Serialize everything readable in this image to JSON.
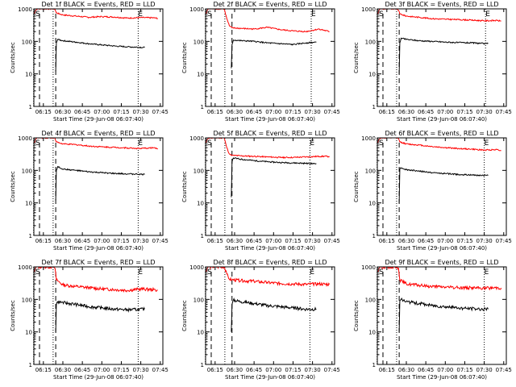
{
  "chart_data": [
    {
      "type": "line",
      "title": "Det 1f BLACK = Events, RED = LLD",
      "xlabel": "Start Time (29-Jun-08 06:07:40)",
      "ylabel": "Counts/sec",
      "x_ticks": [
        "06:15",
        "06:30",
        "06:45",
        "07:00",
        "07:15",
        "07:30",
        "07:45"
      ],
      "y_ticks": [
        "1",
        "10",
        "100",
        "1000"
      ],
      "yscale": "log",
      "ylim": [
        1,
        1000
      ],
      "xlim": [
        "06:07:40",
        "07:47:00"
      ],
      "markers": [
        {
          "label": "S",
          "x": "06:09:00"
        },
        {
          "label": "E",
          "x": "07:28:00"
        }
      ],
      "dashed_lines": [
        "06:12:00",
        "06:24:30"
      ],
      "dotted_lines": [
        "06:07:30",
        "06:22:30",
        "07:28:00"
      ],
      "series": [
        {
          "name": "RED",
          "color": "#ff0000",
          "x": [
            "06:08",
            "06:09",
            "06:10",
            "06:11",
            "06:22",
            "06:23",
            "06:24",
            "06:25",
            "06:30",
            "06:40",
            "06:50",
            "07:00",
            "07:10",
            "07:20",
            "07:30",
            "07:40",
            "07:43"
          ],
          "values": [
            700,
            900,
            1000,
            1000,
            1000,
            1000,
            950,
            750,
            650,
            600,
            550,
            580,
            560,
            520,
            540,
            530,
            510
          ]
        },
        {
          "name": "BLACK",
          "color": "#000000",
          "x": [
            "06:24.5",
            "06:25",
            "06:26",
            "06:30",
            "06:40",
            "06:50",
            "07:00",
            "07:10",
            "07:20",
            "07:33"
          ],
          "values": [
            12,
            90,
            115,
            105,
            95,
            85,
            78,
            72,
            68,
            65
          ]
        }
      ]
    },
    {
      "type": "line",
      "title": "Det 2f BLACK = Events, RED = LLD",
      "xlabel": "Start Time (29-Jun-08 06:07:40)",
      "ylabel": "Counts/sec",
      "x_ticks": [
        "06:15",
        "06:30",
        "06:45",
        "07:00",
        "07:15",
        "07:30",
        "07:45"
      ],
      "y_ticks": [
        "1",
        "10",
        "100",
        "1000"
      ],
      "yscale": "log",
      "ylim": [
        1,
        1000
      ],
      "xlim": [
        "06:07:40",
        "07:47:00"
      ],
      "markers": [
        {
          "label": "S",
          "x": "06:09:00"
        },
        {
          "label": "E",
          "x": "07:29:00"
        }
      ],
      "dashed_lines": [
        "06:12:00",
        "06:28:00"
      ],
      "dotted_lines": [
        "06:07:30",
        "06:22:30",
        "07:29:00"
      ],
      "series": [
        {
          "name": "RED",
          "color": "#ff0000",
          "x": [
            "06:08",
            "06:09",
            "06:10",
            "06:11",
            "06:22",
            "06:24",
            "06:26",
            "06:28",
            "06:35",
            "06:45",
            "06:55",
            "07:05",
            "07:15",
            "07:25",
            "07:35",
            "07:43"
          ],
          "values": [
            700,
            900,
            1000,
            1000,
            1000,
            500,
            300,
            260,
            250,
            240,
            270,
            230,
            210,
            200,
            240,
            200
          ]
        },
        {
          "name": "BLACK",
          "color": "#000000",
          "x": [
            "06:27.5",
            "06:28",
            "06:29",
            "06:35",
            "06:45",
            "06:55",
            "07:05",
            "07:15",
            "07:25",
            "07:33"
          ],
          "values": [
            15,
            80,
            110,
            105,
            100,
            90,
            85,
            80,
            90,
            95
          ]
        }
      ]
    },
    {
      "type": "line",
      "title": "Det 3f BLACK = Events, RED = LLD",
      "xlabel": "Start Time (29-Jun-08 06:07:40)",
      "ylabel": "Counts/sec",
      "x_ticks": [
        "06:15",
        "06:30",
        "06:45",
        "07:00",
        "07:15",
        "07:30",
        "07:45"
      ],
      "y_ticks": [
        "1",
        "10",
        "100",
        "1000"
      ],
      "yscale": "log",
      "ylim": [
        1,
        1000
      ],
      "xlim": [
        "06:07:40",
        "07:47:00"
      ],
      "markers": [
        {
          "label": "S",
          "x": "06:09:00"
        },
        {
          "label": "E",
          "x": "07:31:00"
        }
      ],
      "dashed_lines": [
        "06:12:00",
        "06:24:30"
      ],
      "dotted_lines": [
        "06:07:30",
        "06:22:30",
        "07:31:00"
      ],
      "series": [
        {
          "name": "RED",
          "color": "#ff0000",
          "x": [
            "06:08",
            "06:09",
            "06:10",
            "06:11",
            "06:22",
            "06:23",
            "06:24",
            "06:25",
            "06:30",
            "06:40",
            "06:50",
            "07:00",
            "07:10",
            "07:20",
            "07:30",
            "07:40",
            "07:43"
          ],
          "values": [
            700,
            900,
            1000,
            1000,
            1000,
            1000,
            900,
            700,
            600,
            550,
            500,
            480,
            470,
            450,
            430,
            440,
            420
          ]
        },
        {
          "name": "BLACK",
          "color": "#000000",
          "x": [
            "06:24.5",
            "06:25",
            "06:26",
            "06:30",
            "06:40",
            "06:50",
            "07:00",
            "07:10",
            "07:20",
            "07:33"
          ],
          "values": [
            10,
            90,
            125,
            115,
            105,
            100,
            95,
            92,
            90,
            85
          ]
        }
      ]
    },
    {
      "type": "line",
      "title": "Det 4f BLACK = Events, RED = LLD",
      "xlabel": "Start Time (29-Jun-08 06:07:40)",
      "ylabel": "Counts/sec",
      "x_ticks": [
        "06:15",
        "06:30",
        "06:45",
        "07:00",
        "07:15",
        "07:30",
        "07:45"
      ],
      "y_ticks": [
        "1",
        "10",
        "100",
        "1000"
      ],
      "yscale": "log",
      "ylim": [
        1,
        1000
      ],
      "xlim": [
        "06:07:40",
        "07:47:00"
      ],
      "markers": [
        {
          "label": "S",
          "x": "06:09:00"
        },
        {
          "label": "E",
          "x": "07:28:00"
        }
      ],
      "dashed_lines": [
        "06:12:00",
        "06:24:30"
      ],
      "dotted_lines": [
        "06:07:30",
        "06:22:30",
        "07:28:00"
      ],
      "series": [
        {
          "name": "RED",
          "color": "#ff0000",
          "x": [
            "06:08",
            "06:09",
            "06:10",
            "06:11",
            "06:22",
            "06:23",
            "06:24",
            "06:25",
            "06:30",
            "06:40",
            "06:50",
            "07:00",
            "07:10",
            "07:20",
            "07:30",
            "07:40",
            "07:43"
          ],
          "values": [
            700,
            900,
            1000,
            1000,
            1000,
            1000,
            950,
            750,
            650,
            620,
            560,
            530,
            510,
            490,
            470,
            500,
            450
          ]
        },
        {
          "name": "BLACK",
          "color": "#000000",
          "x": [
            "06:24.5",
            "06:25",
            "06:26",
            "06:30",
            "06:40",
            "06:50",
            "07:00",
            "07:10",
            "07:20",
            "07:33"
          ],
          "values": [
            12,
            100,
            130,
            110,
            100,
            90,
            85,
            80,
            78,
            75
          ]
        }
      ]
    },
    {
      "type": "line",
      "title": "Det 5f BLACK = Events, RED = LLD",
      "xlabel": "Start Time (29-Jun-08 06:07:40)",
      "ylabel": "Counts/sec",
      "x_ticks": [
        "06:15",
        "06:30",
        "06:45",
        "07:00",
        "07:15",
        "07:30",
        "07:45"
      ],
      "y_ticks": [
        "1",
        "10",
        "100",
        "1000"
      ],
      "yscale": "log",
      "ylim": [
        1,
        1000
      ],
      "xlim": [
        "06:07:40",
        "07:47:00"
      ],
      "markers": [
        {
          "label": "S",
          "x": "06:09:00"
        },
        {
          "label": "E",
          "x": "07:28:00"
        }
      ],
      "dashed_lines": [
        "06:12:00",
        "06:28:00"
      ],
      "dotted_lines": [
        "06:07:30",
        "06:22:30",
        "07:28:00"
      ],
      "series": [
        {
          "name": "RED",
          "color": "#ff0000",
          "x": [
            "06:08",
            "06:09",
            "06:10",
            "06:11",
            "06:22",
            "06:24",
            "06:26",
            "06:28",
            "06:35",
            "06:45",
            "06:55",
            "07:05",
            "07:15",
            "07:25",
            "07:35",
            "07:43"
          ],
          "values": [
            700,
            900,
            1000,
            1000,
            1000,
            500,
            320,
            290,
            280,
            270,
            260,
            250,
            250,
            260,
            270,
            270
          ]
        },
        {
          "name": "BLACK",
          "color": "#000000",
          "x": [
            "06:27.5",
            "06:28",
            "06:29",
            "06:35",
            "06:45",
            "06:55",
            "07:05",
            "07:15",
            "07:25",
            "07:33"
          ],
          "values": [
            15,
            180,
            240,
            220,
            200,
            185,
            175,
            170,
            165,
            160
          ]
        }
      ]
    },
    {
      "type": "line",
      "title": "Det 6f BLACK = Events, RED = LLD",
      "xlabel": "Start Time (29-Jun-08 06:07:40)",
      "ylabel": "Counts/sec",
      "x_ticks": [
        "06:15",
        "06:30",
        "06:45",
        "07:00",
        "07:15",
        "07:30",
        "07:45"
      ],
      "y_ticks": [
        "1",
        "10",
        "100",
        "1000"
      ],
      "yscale": "log",
      "ylim": [
        1,
        1000
      ],
      "xlim": [
        "06:07:40",
        "07:47:00"
      ],
      "markers": [
        {
          "label": "S",
          "x": "06:09:00"
        },
        {
          "label": "E",
          "x": "07:30:00"
        }
      ],
      "dashed_lines": [
        "06:12:00",
        "06:24:30"
      ],
      "dotted_lines": [
        "06:07:30",
        "06:22:30",
        "07:30:00"
      ],
      "series": [
        {
          "name": "RED",
          "color": "#ff0000",
          "x": [
            "06:08",
            "06:09",
            "06:10",
            "06:11",
            "06:22",
            "06:23",
            "06:24",
            "06:25",
            "06:30",
            "06:40",
            "06:50",
            "07:00",
            "07:10",
            "07:20",
            "07:30",
            "07:40",
            "07:43"
          ],
          "values": [
            700,
            900,
            1000,
            1000,
            1000,
            1000,
            950,
            750,
            650,
            600,
            540,
            500,
            470,
            450,
            420,
            440,
            410
          ]
        },
        {
          "name": "BLACK",
          "color": "#000000",
          "x": [
            "06:24.5",
            "06:25",
            "06:26",
            "06:30",
            "06:40",
            "06:50",
            "07:00",
            "07:10",
            "07:20",
            "07:33"
          ],
          "values": [
            10,
            110,
            120,
            105,
            95,
            85,
            80,
            75,
            72,
            70
          ]
        }
      ]
    },
    {
      "type": "line",
      "title": "Det 7f BLACK = Events, RED = LLD",
      "xlabel": "Start Time (29-Jun-08 06:07:40)",
      "ylabel": "Counts/sec",
      "x_ticks": [
        "06:15",
        "06:30",
        "06:45",
        "07:00",
        "07:15",
        "07:30",
        "07:45"
      ],
      "y_ticks": [
        "1",
        "10",
        "100",
        "1000"
      ],
      "yscale": "log",
      "ylim": [
        1,
        1000
      ],
      "xlim": [
        "06:07:40",
        "07:47:00"
      ],
      "markers": [
        {
          "label": "S",
          "x": "06:09:00"
        },
        {
          "label": "E",
          "x": "07:28:00"
        }
      ],
      "dashed_lines": [
        "06:12:00",
        "06:24:30"
      ],
      "dotted_lines": [
        "06:07:30",
        "06:22:30",
        "07:28:00"
      ],
      "series": [
        {
          "name": "RED",
          "color": "#ff0000",
          "x": [
            "06:08",
            "06:09",
            "06:10",
            "06:11",
            "06:22",
            "06:23",
            "06:24",
            "06:25",
            "06:30",
            "06:40",
            "06:50",
            "07:00",
            "07:10",
            "07:20",
            "07:30",
            "07:40",
            "07:43"
          ],
          "values": [
            700,
            900,
            1000,
            1000,
            1000,
            1000,
            900,
            400,
            280,
            250,
            230,
            210,
            200,
            190,
            210,
            200,
            190
          ]
        },
        {
          "name": "BLACK",
          "color": "#000000",
          "x": [
            "06:24.5",
            "06:25",
            "06:26",
            "06:30",
            "06:40",
            "06:50",
            "07:00",
            "07:10",
            "07:20",
            "07:33"
          ],
          "values": [
            10,
            70,
            85,
            80,
            70,
            60,
            55,
            50,
            48,
            50
          ]
        }
      ]
    },
    {
      "type": "line",
      "title": "Det 8f BLACK = Events, RED = LLD",
      "xlabel": "Start Time (29-Jun-08 06:07:40)",
      "ylabel": "Counts/sec",
      "x_ticks": [
        "06:15",
        "06:30",
        "06:45",
        "07:00",
        "07:15",
        "07:30",
        "07:45"
      ],
      "y_ticks": [
        "1",
        "10",
        "100",
        "1000"
      ],
      "yscale": "log",
      "ylim": [
        1,
        1000
      ],
      "xlim": [
        "06:07:40",
        "07:47:00"
      ],
      "markers": [
        {
          "label": "S",
          "x": "06:09:00"
        },
        {
          "label": "E",
          "x": "07:28:00"
        }
      ],
      "dashed_lines": [
        "06:12:00",
        "06:28:00"
      ],
      "dotted_lines": [
        "06:07:30",
        "06:22:30",
        "07:28:00"
      ],
      "series": [
        {
          "name": "RED",
          "color": "#ff0000",
          "x": [
            "06:08",
            "06:09",
            "06:10",
            "06:11",
            "06:22",
            "06:24",
            "06:26",
            "06:28",
            "06:35",
            "06:45",
            "06:55",
            "07:05",
            "07:15",
            "07:25",
            "07:35",
            "07:43"
          ],
          "values": [
            700,
            900,
            1000,
            1000,
            1000,
            600,
            420,
            400,
            380,
            360,
            330,
            310,
            300,
            290,
            300,
            290
          ]
        },
        {
          "name": "BLACK",
          "color": "#000000",
          "x": [
            "06:27.5",
            "06:28",
            "06:29",
            "06:35",
            "06:45",
            "06:55",
            "07:05",
            "07:15",
            "07:25",
            "07:33"
          ],
          "values": [
            10,
            70,
            95,
            85,
            75,
            65,
            60,
            55,
            50,
            50
          ]
        }
      ]
    },
    {
      "type": "line",
      "title": "Det 9f BLACK = Events, RED = LLD",
      "xlabel": "Start Time (29-Jun-08 06:07:40)",
      "ylabel": "Counts/sec",
      "x_ticks": [
        "06:15",
        "06:30",
        "06:45",
        "07:00",
        "07:15",
        "07:30",
        "07:45"
      ],
      "y_ticks": [
        "1",
        "10",
        "100",
        "1000"
      ],
      "yscale": "log",
      "ylim": [
        1,
        1000
      ],
      "xlim": [
        "06:07:40",
        "07:47:00"
      ],
      "markers": [
        {
          "label": "S",
          "x": "06:09:00"
        },
        {
          "label": "E",
          "x": "07:30:00"
        }
      ],
      "dashed_lines": [
        "06:12:00",
        "06:24:30"
      ],
      "dotted_lines": [
        "06:07:30",
        "06:22:30",
        "07:30:00"
      ],
      "series": [
        {
          "name": "RED",
          "color": "#ff0000",
          "x": [
            "06:08",
            "06:09",
            "06:10",
            "06:11",
            "06:22",
            "06:23",
            "06:24",
            "06:25",
            "06:30",
            "06:40",
            "06:50",
            "07:00",
            "07:10",
            "07:20",
            "07:30",
            "07:40",
            "07:43"
          ],
          "values": [
            700,
            900,
            1000,
            1000,
            1000,
            1000,
            900,
            400,
            300,
            270,
            250,
            240,
            230,
            230,
            220,
            230,
            225
          ]
        },
        {
          "name": "BLACK",
          "color": "#000000",
          "x": [
            "06:24.5",
            "06:25",
            "06:26",
            "06:30",
            "06:40",
            "06:50",
            "07:00",
            "07:10",
            "07:20",
            "07:33"
          ],
          "values": [
            10,
            90,
            100,
            85,
            75,
            65,
            60,
            55,
            52,
            50
          ]
        }
      ]
    }
  ]
}
